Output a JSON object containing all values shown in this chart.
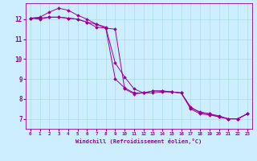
{
  "xlabel": "Windchill (Refroidissement éolien,°C)",
  "bg_color": "#cceeff",
  "line_color": "#990099",
  "grid_color": "#aadddd",
  "xlim": [
    -0.5,
    23.5
  ],
  "ylim": [
    6.5,
    12.8
  ],
  "yticks": [
    7,
    8,
    9,
    10,
    11,
    12
  ],
  "xticks": [
    0,
    1,
    2,
    3,
    4,
    5,
    6,
    7,
    8,
    9,
    10,
    11,
    12,
    13,
    14,
    15,
    16,
    17,
    18,
    19,
    20,
    21,
    22,
    23
  ],
  "series": [
    {
      "x": [
        0,
        1,
        2,
        3,
        4,
        5,
        6,
        7,
        8,
        9,
        10,
        11,
        12,
        13,
        14,
        15,
        16,
        17,
        18,
        19,
        20,
        21,
        22,
        23
      ],
      "y": [
        12.05,
        12.1,
        12.35,
        12.55,
        12.45,
        12.2,
        12.0,
        11.75,
        11.6,
        9.8,
        9.1,
        8.5,
        8.3,
        8.3,
        8.35,
        8.35,
        8.3,
        7.55,
        7.35,
        7.25,
        7.15,
        7.0,
        7.0,
        7.25
      ]
    },
    {
      "x": [
        0,
        1,
        2,
        3,
        4,
        5,
        6,
        7,
        8,
        9,
        10,
        11,
        12,
        13,
        14,
        15,
        16,
        17,
        18,
        19,
        20,
        21,
        22,
        23
      ],
      "y": [
        12.05,
        12.0,
        12.1,
        12.1,
        12.05,
        12.0,
        11.85,
        11.6,
        11.55,
        11.5,
        8.5,
        8.25,
        8.3,
        8.4,
        8.4,
        8.35,
        8.3,
        7.5,
        7.25,
        7.2,
        7.1,
        7.0,
        7.0,
        7.25
      ]
    },
    {
      "x": [
        0,
        1,
        2,
        3,
        4,
        5,
        6,
        7,
        8,
        9,
        10,
        11,
        12,
        13,
        14,
        15,
        16,
        17,
        18,
        19,
        20,
        21,
        22,
        23
      ],
      "y": [
        12.05,
        12.05,
        12.1,
        12.1,
        12.05,
        12.0,
        11.85,
        11.75,
        11.55,
        9.0,
        8.55,
        8.3,
        8.3,
        8.4,
        8.4,
        8.35,
        8.3,
        7.6,
        7.3,
        7.25,
        7.1,
        7.0,
        7.0,
        7.25
      ]
    }
  ]
}
